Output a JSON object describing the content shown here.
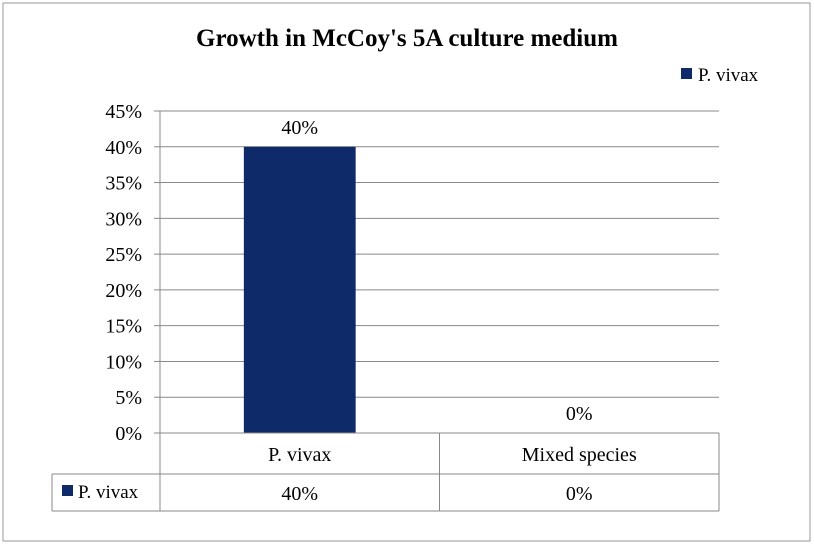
{
  "chart_data": {
    "type": "bar",
    "title": "Growth in McCoy's 5A culture medium",
    "categories": [
      "P. vivax",
      "Mixed species"
    ],
    "series": [
      {
        "name": "P. vivax",
        "values": [
          40,
          0
        ],
        "data_labels": [
          "40%",
          "0%"
        ]
      }
    ],
    "ylim": [
      0,
      45
    ],
    "y_tick_step": 5,
    "y_tick_labels": [
      "0%",
      "5%",
      "10%",
      "15%",
      "20%",
      "25%",
      "30%",
      "35%",
      "40%",
      "45%"
    ],
    "grid": true,
    "legend_position": "top-right",
    "data_table": true,
    "colors": {
      "bar": "#0f2a68",
      "grid": "#888888",
      "frame": "#999999"
    }
  }
}
